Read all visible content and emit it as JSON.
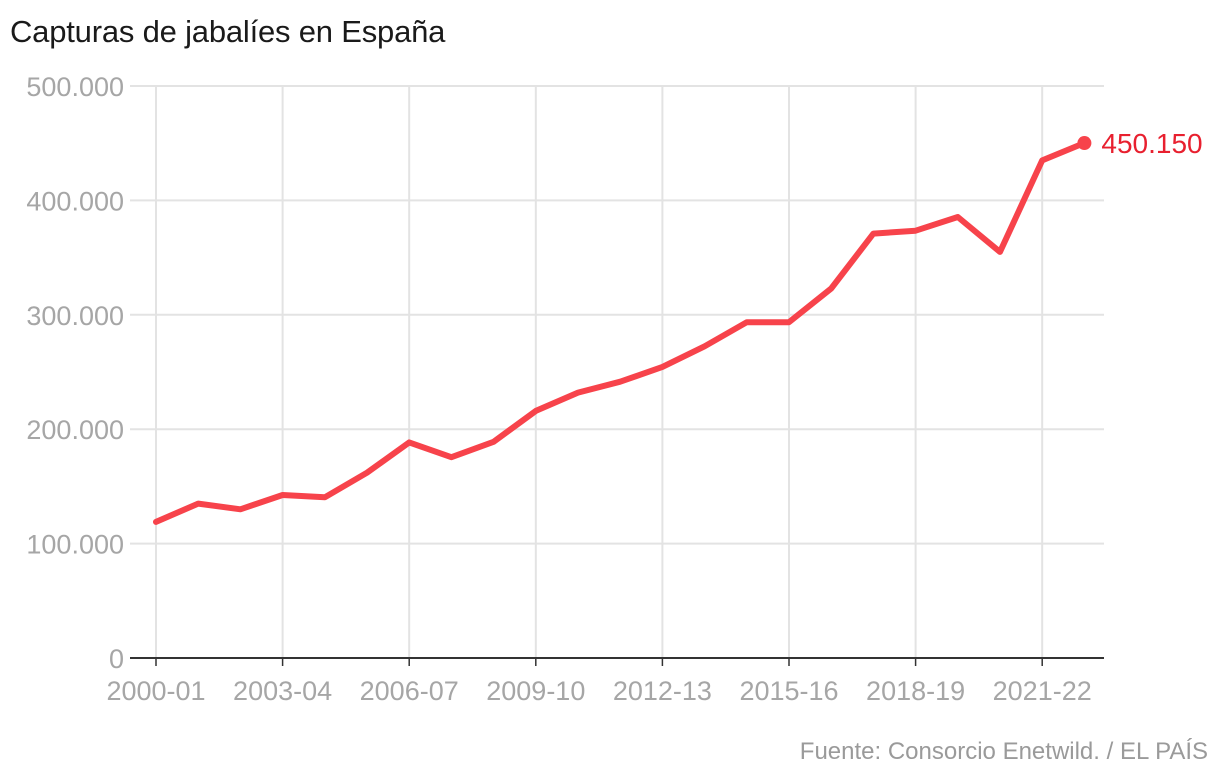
{
  "chart_data": {
    "type": "line",
    "title": "Capturas de jabalíes en España",
    "source": "Fuente: Consorcio Enetwild. / EL PAÍS",
    "x": [
      "2000-01",
      "2001-02",
      "2002-03",
      "2003-04",
      "2004-05",
      "2005-06",
      "2006-07",
      "2007-08",
      "2008-09",
      "2009-10",
      "2010-11",
      "2011-12",
      "2012-13",
      "2013-14",
      "2014-15",
      "2015-16",
      "2016-17",
      "2017-18",
      "2018-19",
      "2019-20",
      "2020-21",
      "2021-22",
      "2022-23"
    ],
    "x_tick_labels": [
      "2000-01",
      "2003-04",
      "2006-07",
      "2009-10",
      "2012-13",
      "2015-16",
      "2018-19",
      "2021-22"
    ],
    "y_tick_labels": [
      "0",
      "100.000",
      "200.000",
      "300.000",
      "400.000",
      "500.000"
    ],
    "y_ticks": [
      0,
      100000,
      200000,
      300000,
      400000,
      500000
    ],
    "ylim": [
      0,
      500000
    ],
    "series": [
      {
        "values": [
          119000,
          135000,
          130000,
          142500,
          140500,
          162000,
          188500,
          175500,
          189000,
          216000,
          232000,
          241500,
          254500,
          272500,
          293500,
          293500,
          323000,
          371000,
          373500,
          385500,
          355000,
          435000,
          450150
        ]
      }
    ],
    "end_label": "450.150",
    "line_color": "#f7434b",
    "label_color": "#e8202f",
    "grid": true
  }
}
